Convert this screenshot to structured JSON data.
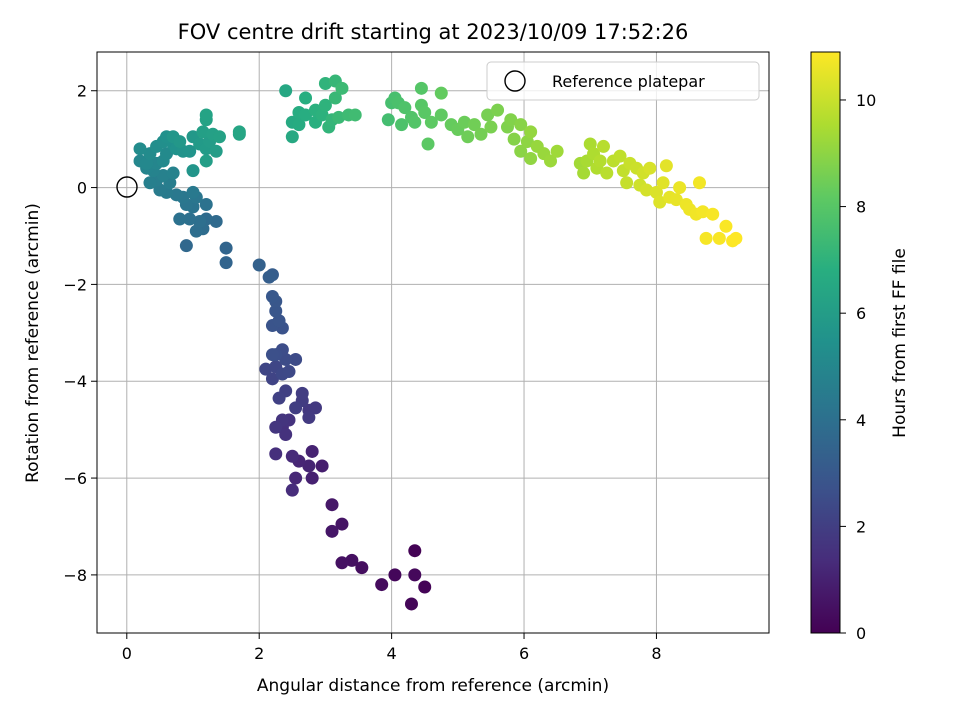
{
  "chart_data": {
    "type": "scatter",
    "title": "FOV centre drift starting at 2023/10/09 17:52:26",
    "xlabel": "Angular distance from reference (arcmin)",
    "ylabel": "Rotation from reference (arcmin)",
    "xlim": [
      -0.45,
      9.7
    ],
    "ylim": [
      -9.2,
      2.8
    ],
    "xticks": [
      0,
      2,
      4,
      6,
      8
    ],
    "yticks": [
      -8,
      -6,
      -4,
      -2,
      0,
      2
    ],
    "xtick_labels": [
      "0",
      "2",
      "4",
      "6",
      "8"
    ],
    "ytick_labels": [
      "−8",
      "−6",
      "−4",
      "−2",
      "0",
      "2"
    ],
    "grid": true,
    "colormap": "viridis",
    "colorbar": {
      "label": "Hours from first FF file",
      "range": [
        0,
        10.9
      ],
      "ticks": [
        0,
        2,
        4,
        6,
        8,
        10
      ],
      "tick_labels": [
        "0",
        "2",
        "4",
        "6",
        "8",
        "10"
      ]
    },
    "legend": {
      "position": "upper right",
      "entries": [
        "Reference platepar"
      ]
    },
    "reference_point": {
      "x": 0,
      "y": 0
    },
    "points": [
      {
        "x": 4.35,
        "y": -7.5,
        "t": 0.05
      },
      {
        "x": 4.5,
        "y": -8.25,
        "t": 0.1
      },
      {
        "x": 4.3,
        "y": -8.6,
        "t": 0.15
      },
      {
        "x": 4.05,
        "y": -8.0,
        "t": 0.2
      },
      {
        "x": 4.35,
        "y": -8.0,
        "t": 0.25
      },
      {
        "x": 3.85,
        "y": -8.2,
        "t": 0.3
      },
      {
        "x": 3.55,
        "y": -7.85,
        "t": 0.4
      },
      {
        "x": 3.4,
        "y": -7.7,
        "t": 0.45
      },
      {
        "x": 3.25,
        "y": -7.75,
        "t": 0.5
      },
      {
        "x": 3.25,
        "y": -6.95,
        "t": 0.6
      },
      {
        "x": 3.1,
        "y": -7.1,
        "t": 0.65
      },
      {
        "x": 3.1,
        "y": -6.55,
        "t": 0.7
      },
      {
        "x": 2.95,
        "y": -5.75,
        "t": 0.9
      },
      {
        "x": 2.8,
        "y": -6.0,
        "t": 1.0
      },
      {
        "x": 2.8,
        "y": -5.45,
        "t": 1.05
      },
      {
        "x": 2.75,
        "y": -5.75,
        "t": 1.1
      },
      {
        "x": 2.6,
        "y": -5.65,
        "t": 1.15
      },
      {
        "x": 2.55,
        "y": -6.0,
        "t": 1.2
      },
      {
        "x": 2.5,
        "y": -5.55,
        "t": 1.3
      },
      {
        "x": 2.5,
        "y": -6.25,
        "t": 1.35
      },
      {
        "x": 2.25,
        "y": -5.5,
        "t": 1.45
      },
      {
        "x": 2.35,
        "y": -4.95,
        "t": 1.5
      },
      {
        "x": 2.4,
        "y": -5.1,
        "t": 1.55
      },
      {
        "x": 2.45,
        "y": -4.8,
        "t": 1.6
      },
      {
        "x": 2.35,
        "y": -4.8,
        "t": 1.65
      },
      {
        "x": 2.25,
        "y": -4.95,
        "t": 1.7
      },
      {
        "x": 2.75,
        "y": -4.6,
        "t": 1.75
      },
      {
        "x": 2.85,
        "y": -4.55,
        "t": 1.8
      },
      {
        "x": 2.75,
        "y": -4.75,
        "t": 1.85
      },
      {
        "x": 2.65,
        "y": -4.4,
        "t": 1.9
      },
      {
        "x": 2.65,
        "y": -4.25,
        "t": 1.95
      },
      {
        "x": 2.55,
        "y": -4.55,
        "t": 2.0
      },
      {
        "x": 2.4,
        "y": -4.2,
        "t": 2.05
      },
      {
        "x": 2.3,
        "y": -4.35,
        "t": 2.1
      },
      {
        "x": 2.2,
        "y": -3.95,
        "t": 2.2
      },
      {
        "x": 2.1,
        "y": -3.75,
        "t": 2.25
      },
      {
        "x": 2.25,
        "y": -3.7,
        "t": 2.3
      },
      {
        "x": 2.35,
        "y": -3.85,
        "t": 2.35
      },
      {
        "x": 2.45,
        "y": -3.8,
        "t": 2.4
      },
      {
        "x": 2.55,
        "y": -3.55,
        "t": 2.45
      },
      {
        "x": 2.4,
        "y": -3.55,
        "t": 2.5
      },
      {
        "x": 2.35,
        "y": -3.35,
        "t": 2.55
      },
      {
        "x": 2.25,
        "y": -3.45,
        "t": 2.6
      },
      {
        "x": 2.2,
        "y": -3.45,
        "t": 2.65
      },
      {
        "x": 2.35,
        "y": -2.9,
        "t": 2.75
      },
      {
        "x": 2.2,
        "y": -2.85,
        "t": 2.8
      },
      {
        "x": 2.3,
        "y": -2.75,
        "t": 2.85
      },
      {
        "x": 2.25,
        "y": -2.55,
        "t": 2.9
      },
      {
        "x": 2.25,
        "y": -2.35,
        "t": 2.95
      },
      {
        "x": 2.2,
        "y": -2.25,
        "t": 3.0
      },
      {
        "x": 2.2,
        "y": -1.8,
        "t": 3.2
      },
      {
        "x": 2.15,
        "y": -1.85,
        "t": 3.25
      },
      {
        "x": 2.0,
        "y": -1.6,
        "t": 3.35
      },
      {
        "x": 1.5,
        "y": -1.55,
        "t": 3.5
      },
      {
        "x": 1.5,
        "y": -1.25,
        "t": 3.55
      },
      {
        "x": 0.9,
        "y": -1.2,
        "t": 3.65
      },
      {
        "x": 1.35,
        "y": -0.7,
        "t": 3.75
      },
      {
        "x": 1.2,
        "y": -0.65,
        "t": 3.8
      },
      {
        "x": 1.15,
        "y": -0.85,
        "t": 3.85
      },
      {
        "x": 1.05,
        "y": -0.9,
        "t": 3.9
      },
      {
        "x": 1.1,
        "y": -0.7,
        "t": 3.95
      },
      {
        "x": 0.95,
        "y": -0.65,
        "t": 4.0
      },
      {
        "x": 0.8,
        "y": -0.65,
        "t": 4.05
      },
      {
        "x": 1.2,
        "y": -0.35,
        "t": 4.1
      },
      {
        "x": 1.0,
        "y": -0.4,
        "t": 4.15
      },
      {
        "x": 0.9,
        "y": -0.35,
        "t": 4.2
      },
      {
        "x": 1.05,
        "y": -0.2,
        "t": 4.25
      },
      {
        "x": 0.85,
        "y": -0.2,
        "t": 4.3
      },
      {
        "x": 0.75,
        "y": -0.15,
        "t": 4.35
      },
      {
        "x": 1.0,
        "y": -0.1,
        "t": 4.4
      },
      {
        "x": 0.6,
        "y": -0.1,
        "t": 4.45
      },
      {
        "x": 0.5,
        "y": -0.05,
        "t": 4.5
      },
      {
        "x": 0.65,
        "y": 0.1,
        "t": 4.55
      },
      {
        "x": 0.45,
        "y": 0.15,
        "t": 4.6
      },
      {
        "x": 0.35,
        "y": 0.1,
        "t": 4.65
      },
      {
        "x": 0.55,
        "y": 0.25,
        "t": 4.75
      },
      {
        "x": 0.7,
        "y": 0.3,
        "t": 4.8
      },
      {
        "x": 0.4,
        "y": 0.35,
        "t": 4.85
      },
      {
        "x": 0.3,
        "y": 0.4,
        "t": 4.9
      },
      {
        "x": 0.45,
        "y": 0.5,
        "t": 4.95
      },
      {
        "x": 0.2,
        "y": 0.55,
        "t": 5.0
      },
      {
        "x": 0.3,
        "y": 0.5,
        "t": 5.05
      },
      {
        "x": 0.55,
        "y": 0.55,
        "t": 5.1
      },
      {
        "x": 0.6,
        "y": 0.7,
        "t": 5.15
      },
      {
        "x": 0.35,
        "y": 0.7,
        "t": 5.2
      },
      {
        "x": 0.2,
        "y": 0.8,
        "t": 5.25
      },
      {
        "x": 0.45,
        "y": 0.85,
        "t": 5.3
      },
      {
        "x": 0.55,
        "y": 0.95,
        "t": 5.35
      },
      {
        "x": 0.7,
        "y": 0.9,
        "t": 5.4
      },
      {
        "x": 0.6,
        "y": 1.05,
        "t": 5.45
      },
      {
        "x": 0.75,
        "y": 0.8,
        "t": 5.5
      },
      {
        "x": 0.85,
        "y": 0.75,
        "t": 5.55
      },
      {
        "x": 0.95,
        "y": 0.75,
        "t": 5.6
      },
      {
        "x": 1.0,
        "y": 0.35,
        "t": 5.65
      },
      {
        "x": 0.7,
        "y": 1.05,
        "t": 5.7
      },
      {
        "x": 0.8,
        "y": 0.95,
        "t": 5.75
      },
      {
        "x": 1.0,
        "y": 1.05,
        "t": 5.8
      },
      {
        "x": 1.1,
        "y": 0.9,
        "t": 5.85
      },
      {
        "x": 1.2,
        "y": 0.8,
        "t": 5.9
      },
      {
        "x": 1.25,
        "y": 0.95,
        "t": 5.95
      },
      {
        "x": 1.35,
        "y": 0.75,
        "t": 6.0
      },
      {
        "x": 1.2,
        "y": 0.55,
        "t": 6.05
      },
      {
        "x": 1.15,
        "y": 1.15,
        "t": 6.1
      },
      {
        "x": 1.3,
        "y": 1.1,
        "t": 6.15
      },
      {
        "x": 1.4,
        "y": 1.05,
        "t": 6.2
      },
      {
        "x": 1.2,
        "y": 1.4,
        "t": 6.25
      },
      {
        "x": 1.2,
        "y": 1.5,
        "t": 6.3
      },
      {
        "x": 1.7,
        "y": 1.1,
        "t": 6.35
      },
      {
        "x": 1.7,
        "y": 1.15,
        "t": 6.4
      },
      {
        "x": 2.4,
        "y": 2.0,
        "t": 6.5
      },
      {
        "x": 2.5,
        "y": 1.05,
        "t": 6.55
      },
      {
        "x": 2.5,
        "y": 1.35,
        "t": 6.6
      },
      {
        "x": 2.6,
        "y": 1.3,
        "t": 6.65
      },
      {
        "x": 2.6,
        "y": 1.55,
        "t": 6.7
      },
      {
        "x": 2.7,
        "y": 1.5,
        "t": 6.75
      },
      {
        "x": 2.7,
        "y": 1.85,
        "t": 6.8
      },
      {
        "x": 2.85,
        "y": 1.35,
        "t": 6.85
      },
      {
        "x": 2.85,
        "y": 1.6,
        "t": 6.9
      },
      {
        "x": 2.95,
        "y": 1.5,
        "t": 6.95
      },
      {
        "x": 3.0,
        "y": 1.7,
        "t": 7.0
      },
      {
        "x": 3.0,
        "y": 2.15,
        "t": 7.05
      },
      {
        "x": 3.05,
        "y": 1.25,
        "t": 7.1
      },
      {
        "x": 3.1,
        "y": 1.4,
        "t": 7.15
      },
      {
        "x": 3.15,
        "y": 2.2,
        "t": 7.2
      },
      {
        "x": 3.15,
        "y": 1.85,
        "t": 7.25
      },
      {
        "x": 3.2,
        "y": 1.45,
        "t": 7.3
      },
      {
        "x": 3.25,
        "y": 2.05,
        "t": 7.35
      },
      {
        "x": 3.35,
        "y": 1.5,
        "t": 7.4
      },
      {
        "x": 3.45,
        "y": 1.5,
        "t": 7.45
      },
      {
        "x": 3.95,
        "y": 1.4,
        "t": 7.55
      },
      {
        "x": 4.0,
        "y": 1.75,
        "t": 7.6
      },
      {
        "x": 4.05,
        "y": 1.85,
        "t": 7.65
      },
      {
        "x": 4.1,
        "y": 1.75,
        "t": 7.7
      },
      {
        "x": 4.15,
        "y": 1.3,
        "t": 7.75
      },
      {
        "x": 4.2,
        "y": 1.65,
        "t": 7.8
      },
      {
        "x": 4.3,
        "y": 1.45,
        "t": 7.85
      },
      {
        "x": 4.35,
        "y": 1.35,
        "t": 7.9
      },
      {
        "x": 4.45,
        "y": 2.05,
        "t": 7.95
      },
      {
        "x": 4.45,
        "y": 1.7,
        "t": 8.0
      },
      {
        "x": 4.5,
        "y": 1.55,
        "t": 8.05
      },
      {
        "x": 4.55,
        "y": 0.9,
        "t": 8.1
      },
      {
        "x": 4.6,
        "y": 1.35,
        "t": 8.15
      },
      {
        "x": 4.75,
        "y": 1.5,
        "t": 8.2
      },
      {
        "x": 4.75,
        "y": 1.95,
        "t": 8.25
      },
      {
        "x": 4.9,
        "y": 1.3,
        "t": 8.3
      },
      {
        "x": 5.0,
        "y": 1.2,
        "t": 8.35
      },
      {
        "x": 5.1,
        "y": 1.35,
        "t": 8.4
      },
      {
        "x": 5.15,
        "y": 1.05,
        "t": 8.45
      },
      {
        "x": 5.25,
        "y": 1.3,
        "t": 8.5
      },
      {
        "x": 5.35,
        "y": 1.1,
        "t": 8.55
      },
      {
        "x": 5.45,
        "y": 1.5,
        "t": 8.6
      },
      {
        "x": 5.5,
        "y": 1.25,
        "t": 8.65
      },
      {
        "x": 5.6,
        "y": 1.6,
        "t": 8.7
      },
      {
        "x": 5.75,
        "y": 1.25,
        "t": 8.75
      },
      {
        "x": 5.8,
        "y": 1.4,
        "t": 8.8
      },
      {
        "x": 5.85,
        "y": 1.0,
        "t": 8.85
      },
      {
        "x": 5.95,
        "y": 1.3,
        "t": 8.9
      },
      {
        "x": 5.95,
        "y": 0.75,
        "t": 8.95
      },
      {
        "x": 6.05,
        "y": 0.95,
        "t": 9.0
      },
      {
        "x": 6.1,
        "y": 0.6,
        "t": 9.05
      },
      {
        "x": 6.1,
        "y": 1.15,
        "t": 9.1
      },
      {
        "x": 6.2,
        "y": 0.85,
        "t": 9.15
      },
      {
        "x": 6.3,
        "y": 0.7,
        "t": 9.2
      },
      {
        "x": 6.4,
        "y": 0.55,
        "t": 9.25
      },
      {
        "x": 6.5,
        "y": 0.75,
        "t": 9.3
      },
      {
        "x": 6.85,
        "y": 0.5,
        "t": 9.35
      },
      {
        "x": 6.9,
        "y": 0.3,
        "t": 9.4
      },
      {
        "x": 6.95,
        "y": 0.55,
        "t": 9.45
      },
      {
        "x": 7.0,
        "y": 0.9,
        "t": 9.5
      },
      {
        "x": 7.05,
        "y": 0.7,
        "t": 9.55
      },
      {
        "x": 7.1,
        "y": 0.4,
        "t": 9.6
      },
      {
        "x": 7.15,
        "y": 0.55,
        "t": 9.65
      },
      {
        "x": 7.2,
        "y": 0.85,
        "t": 9.7
      },
      {
        "x": 7.25,
        "y": 0.3,
        "t": 9.75
      },
      {
        "x": 7.35,
        "y": 0.55,
        "t": 9.8
      },
      {
        "x": 7.45,
        "y": 0.65,
        "t": 9.85
      },
      {
        "x": 7.5,
        "y": 0.35,
        "t": 9.9
      },
      {
        "x": 7.55,
        "y": 0.1,
        "t": 9.95
      },
      {
        "x": 7.6,
        "y": 0.5,
        "t": 10.0
      },
      {
        "x": 7.7,
        "y": 0.4,
        "t": 10.05
      },
      {
        "x": 7.75,
        "y": 0.05,
        "t": 10.1
      },
      {
        "x": 7.8,
        "y": 0.3,
        "t": 10.15
      },
      {
        "x": 7.85,
        "y": -0.05,
        "t": 10.2
      },
      {
        "x": 7.9,
        "y": 0.4,
        "t": 10.25
      },
      {
        "x": 8.0,
        "y": -0.1,
        "t": 10.3
      },
      {
        "x": 8.05,
        "y": -0.3,
        "t": 10.35
      },
      {
        "x": 8.1,
        "y": 0.1,
        "t": 10.4
      },
      {
        "x": 8.15,
        "y": 0.45,
        "t": 10.45
      },
      {
        "x": 8.2,
        "y": -0.2,
        "t": 10.5
      },
      {
        "x": 8.3,
        "y": -0.25,
        "t": 10.55
      },
      {
        "x": 8.35,
        "y": 0.0,
        "t": 10.6
      },
      {
        "x": 8.45,
        "y": -0.35,
        "t": 10.62
      },
      {
        "x": 8.5,
        "y": -0.45,
        "t": 10.65
      },
      {
        "x": 8.6,
        "y": -0.55,
        "t": 10.7
      },
      {
        "x": 8.65,
        "y": 0.1,
        "t": 10.72
      },
      {
        "x": 8.7,
        "y": -0.5,
        "t": 10.75
      },
      {
        "x": 8.75,
        "y": -1.05,
        "t": 10.78
      },
      {
        "x": 8.85,
        "y": -0.55,
        "t": 10.8
      },
      {
        "x": 8.95,
        "y": -1.05,
        "t": 10.82
      },
      {
        "x": 9.05,
        "y": -0.8,
        "t": 10.85
      },
      {
        "x": 9.15,
        "y": -1.1,
        "t": 10.88
      },
      {
        "x": 9.2,
        "y": -1.05,
        "t": 10.9
      }
    ]
  }
}
